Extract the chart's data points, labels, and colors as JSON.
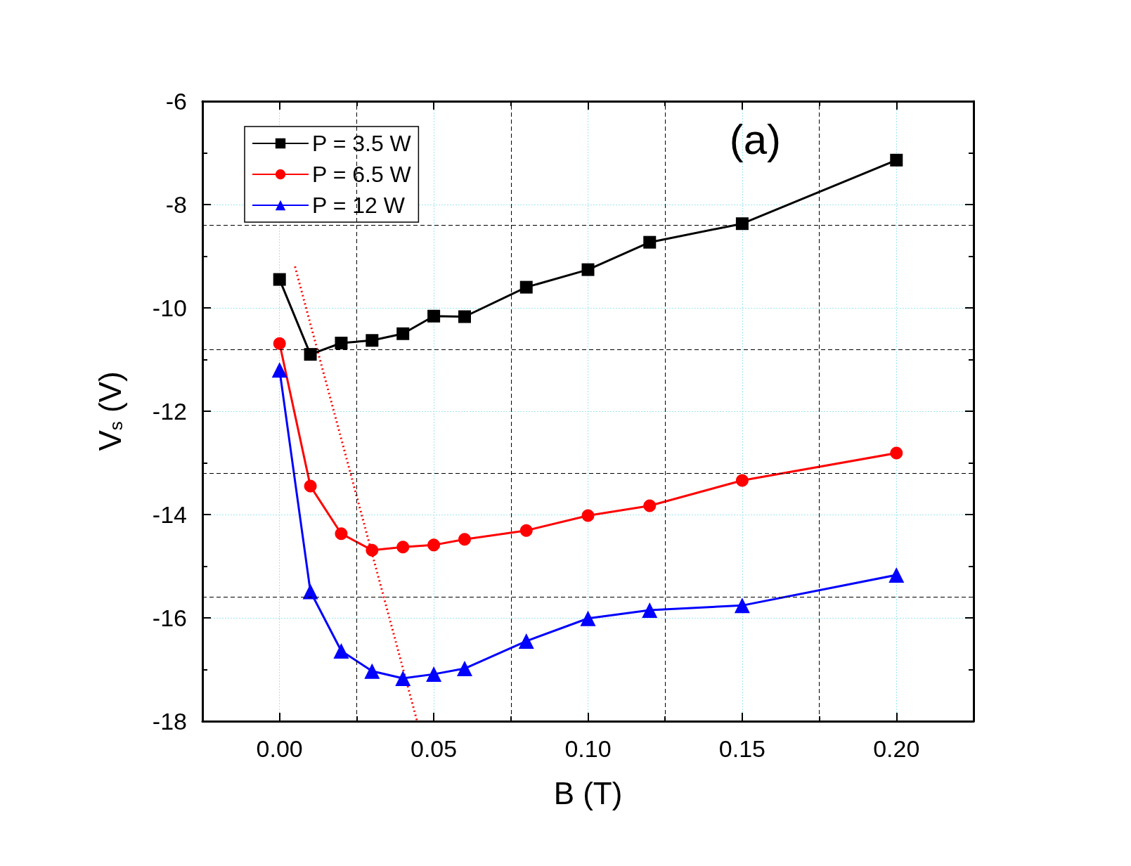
{
  "chart_data": {
    "type": "line",
    "xlabel": "B (T)",
    "ylabel": "V$_{s}$ (V)",
    "annotations": [
      "(a)"
    ],
    "x": [
      0,
      0.01,
      0.02,
      0.03,
      0.04,
      0.05,
      0.06,
      0.08,
      0.1,
      0.12,
      0.15,
      0.2
    ],
    "series": [
      {
        "name": "P = 3.5 W",
        "color": "#000000",
        "marker": "square",
        "values": [
          -9.45,
          -10.9,
          -10.68,
          -10.63,
          -10.5,
          -10.16,
          -10.17,
          -9.6,
          -9.26,
          -8.73,
          -8.37,
          -7.14
        ]
      },
      {
        "name": "P = 6.5 W",
        "color": "#ff0000",
        "marker": "circle",
        "values": [
          -10.69,
          -13.45,
          -14.37,
          -14.69,
          -14.63,
          -14.59,
          -14.48,
          -14.31,
          -14.02,
          -13.83,
          -13.34,
          -12.81
        ]
      },
      {
        "name": "P = 12 W",
        "color": "#0000ff",
        "marker": "triangle",
        "values": [
          -11.2,
          -15.49,
          -16.64,
          -17.03,
          -17.17,
          -17.09,
          -16.98,
          -16.45,
          -16.01,
          -15.85,
          -15.76,
          -15.17
        ]
      },
      {
        "type": "line",
        "color": "#ff0000",
        "marker": "none",
        "line_style": "dotted",
        "x": [
          0.005,
          0.0446
        ],
        "values": [
          -9.2,
          -18
        ]
      }
    ],
    "xlim": [
      -0.025,
      0.225
    ],
    "xticks": [
      {
        "value": 0,
        "label": "0.00"
      },
      {
        "value": 0.05,
        "label": "0.05"
      },
      {
        "value": 0.1,
        "label": "0.10"
      },
      {
        "value": 0.15,
        "label": "0.15"
      },
      {
        "value": 0.2,
        "label": "0.20"
      }
    ],
    "ylim": [
      -18,
      -6
    ],
    "yticks": [
      -18,
      -16,
      -14,
      -12,
      -10,
      -8,
      -6
    ],
    "ref_lines": [
      {
        "axis": "x",
        "value": 0.025,
        "color": "#000000",
        "line_style": "dashed"
      },
      {
        "axis": "x",
        "value": 0.075,
        "color": "#000000",
        "line_style": "dashed"
      },
      {
        "axis": "x",
        "value": 0.125,
        "color": "#000000",
        "line_style": "dashed"
      },
      {
        "axis": "x",
        "value": 0.175,
        "color": "#000000",
        "line_style": "dashed"
      },
      {
        "axis": "y",
        "value": -8.4,
        "color": "#000000",
        "line_style": "dashed"
      },
      {
        "axis": "y",
        "value": -10.8,
        "color": "#000000",
        "line_style": "dashed"
      },
      {
        "axis": "y",
        "value": -13.2,
        "color": "#000000",
        "line_style": "dashed"
      },
      {
        "axis": "y",
        "value": -15.6,
        "color": "#000000",
        "line_style": "dashed"
      }
    ],
    "grid": true,
    "legend": "top left",
    "line_style": "solid"
  }
}
